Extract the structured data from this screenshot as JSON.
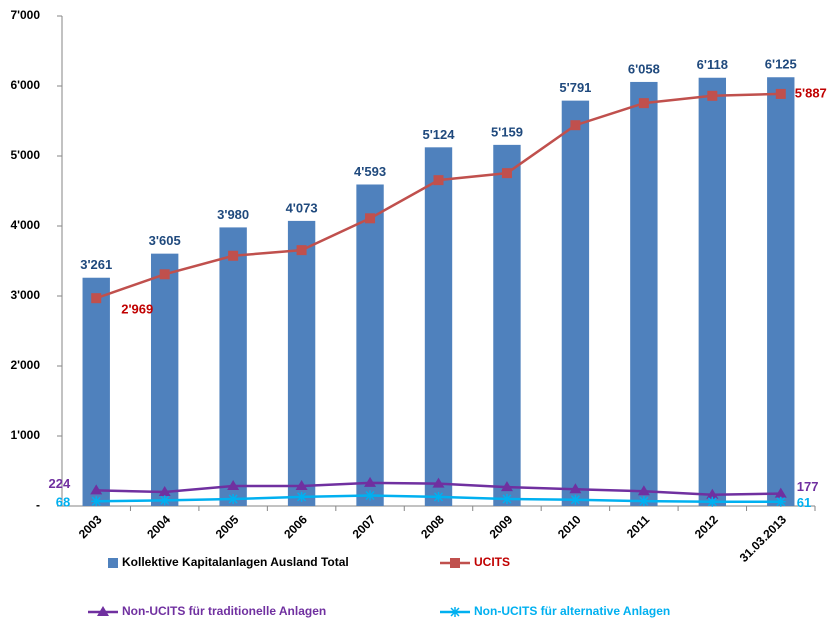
{
  "chart_data": {
    "type": "bar",
    "categories": [
      "2003",
      "2004",
      "2005",
      "2006",
      "2007",
      "2008",
      "2009",
      "2010",
      "2011",
      "2012",
      "31.03.2013"
    ],
    "ylim": [
      0,
      7000
    ],
    "yticks": [
      {
        "value": 0,
        "label": "-"
      },
      {
        "value": 1000,
        "label": "1'000"
      },
      {
        "value": 2000,
        "label": "2'000"
      },
      {
        "value": 3000,
        "label": "3'000"
      },
      {
        "value": 4000,
        "label": "4'000"
      },
      {
        "value": 5000,
        "label": "5'000"
      },
      {
        "value": 6000,
        "label": "6'000"
      },
      {
        "value": 7000,
        "label": "7'000"
      }
    ],
    "series": [
      {
        "name": "Kollektive Kapitalanlagen Ausland Total",
        "type": "bar",
        "color": "#4f81bd",
        "values": [
          3261,
          3605,
          3980,
          4073,
          4593,
          5124,
          5159,
          5791,
          6058,
          6118,
          6125
        ],
        "value_labels": [
          "3'261",
          "3'605",
          "3'980",
          "4'073",
          "4'593",
          "5'124",
          "5'159",
          "5'791",
          "6'058",
          "6'118",
          "6'125"
        ]
      },
      {
        "name": "UCITS",
        "type": "line",
        "color": "#c0504d",
        "marker": "square",
        "values": [
          2969,
          3310,
          3575,
          3655,
          4110,
          4655,
          4755,
          5440,
          5755,
          5860,
          5887
        ],
        "value_labels": [
          "2'969",
          null,
          null,
          null,
          null,
          null,
          null,
          null,
          null,
          null,
          "5'887"
        ]
      },
      {
        "name": "Non-UCITS für traditionelle Anlagen",
        "type": "line",
        "color": "#7030a0",
        "marker": "triangle",
        "values": [
          224,
          200,
          285,
          285,
          330,
          320,
          270,
          240,
          210,
          160,
          177
        ],
        "value_labels": [
          "224",
          null,
          null,
          null,
          null,
          null,
          null,
          null,
          null,
          null,
          "177"
        ]
      },
      {
        "name": "Non-UCITS für alternative Anlagen",
        "type": "line",
        "color": "#00b0f0",
        "marker": "asterisk",
        "values": [
          68,
          80,
          100,
          130,
          150,
          130,
          100,
          90,
          70,
          60,
          61
        ],
        "value_labels": [
          "68",
          null,
          null,
          null,
          null,
          null,
          null,
          null,
          null,
          null,
          "61"
        ]
      }
    ]
  }
}
